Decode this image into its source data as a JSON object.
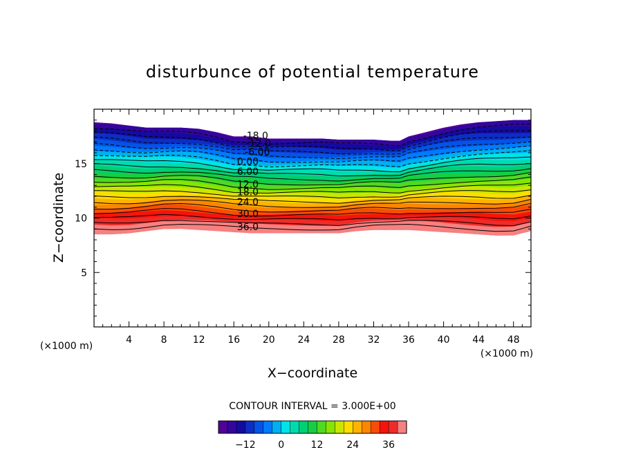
{
  "chart_data": {
    "type": "heatmap",
    "title": "disturbunce of potential temperature",
    "xlabel": "X−coordinate",
    "ylabel": "Z−coordinate",
    "x_units_left": "(×1000 m)",
    "x_units_right": "(×1000 m)",
    "xlim": [
      0,
      50
    ],
    "ylim": [
      0,
      20
    ],
    "x_ticks": [
      4,
      8,
      12,
      16,
      20,
      24,
      28,
      32,
      36,
      40,
      44,
      48
    ],
    "x_tick_labels": [
      "4",
      "8",
      "12",
      "16",
      "20",
      "24",
      "28",
      "32",
      "36",
      "40",
      "44",
      "48"
    ],
    "y_ticks": [
      5,
      10,
      15
    ],
    "y_tick_labels": [
      "5",
      "10",
      "15"
    ],
    "contour_interval_label": "CONTOUR INTERVAL = 3.000E+00",
    "contour_interval": 3.0,
    "value_range": [
      -21,
      42
    ],
    "contour_labels": [
      {
        "text": "-18.0",
        "x": 18.5,
        "z": 17.6
      },
      {
        "text": "-12.0",
        "x": 18.8,
        "z": 16.9
      },
      {
        "text": "-6.00",
        "x": 18.7,
        "z": 16.1
      },
      {
        "text": "0.00",
        "x": 17.6,
        "z": 15.2
      },
      {
        "text": "6.00",
        "x": 17.6,
        "z": 14.3
      },
      {
        "text": "12.0",
        "x": 17.6,
        "z": 13.1
      },
      {
        "text": "18.0",
        "x": 17.6,
        "z": 12.4
      },
      {
        "text": "24.0",
        "x": 17.6,
        "z": 11.5
      },
      {
        "text": "30.0",
        "x": 17.6,
        "z": 10.4
      },
      {
        "text": "36.0",
        "x": 17.6,
        "z": 9.2
      }
    ],
    "top_boundary": {
      "x": [
        0,
        2,
        4,
        6,
        8,
        10,
        12,
        14,
        16,
        18,
        20,
        22,
        24,
        26,
        28,
        30,
        32,
        34,
        35,
        36,
        38,
        40,
        42,
        44,
        46,
        48,
        50
      ],
      "z": [
        18.8,
        18.7,
        18.5,
        18.3,
        18.3,
        18.3,
        18.2,
        17.9,
        17.5,
        17.5,
        17.3,
        17.3,
        17.3,
        17.3,
        17.2,
        17.2,
        17.2,
        17.1,
        17.1,
        17.5,
        17.9,
        18.3,
        18.6,
        18.8,
        18.9,
        19.0,
        19.0
      ]
    },
    "bottom_boundary": {
      "x": [
        0,
        2,
        4,
        6,
        8,
        10,
        12,
        14,
        16,
        18,
        20,
        22,
        24,
        26,
        28,
        30,
        32,
        34,
        36,
        38,
        40,
        42,
        44,
        46,
        48,
        50
      ],
      "z": [
        8.5,
        8.5,
        8.6,
        8.8,
        9.0,
        9.0,
        8.9,
        8.8,
        8.7,
        8.6,
        8.6,
        8.6,
        8.6,
        8.6,
        8.6,
        8.8,
        8.9,
        8.9,
        8.9,
        8.8,
        8.7,
        8.6,
        8.5,
        8.4,
        8.4,
        8.8
      ]
    },
    "colorbar": {
      "ticks": [
        -12,
        0,
        12,
        24,
        36
      ],
      "tick_labels": [
        "−12",
        "0",
        "12",
        "24",
        "36"
      ],
      "range": [
        -21,
        42
      ]
    }
  }
}
